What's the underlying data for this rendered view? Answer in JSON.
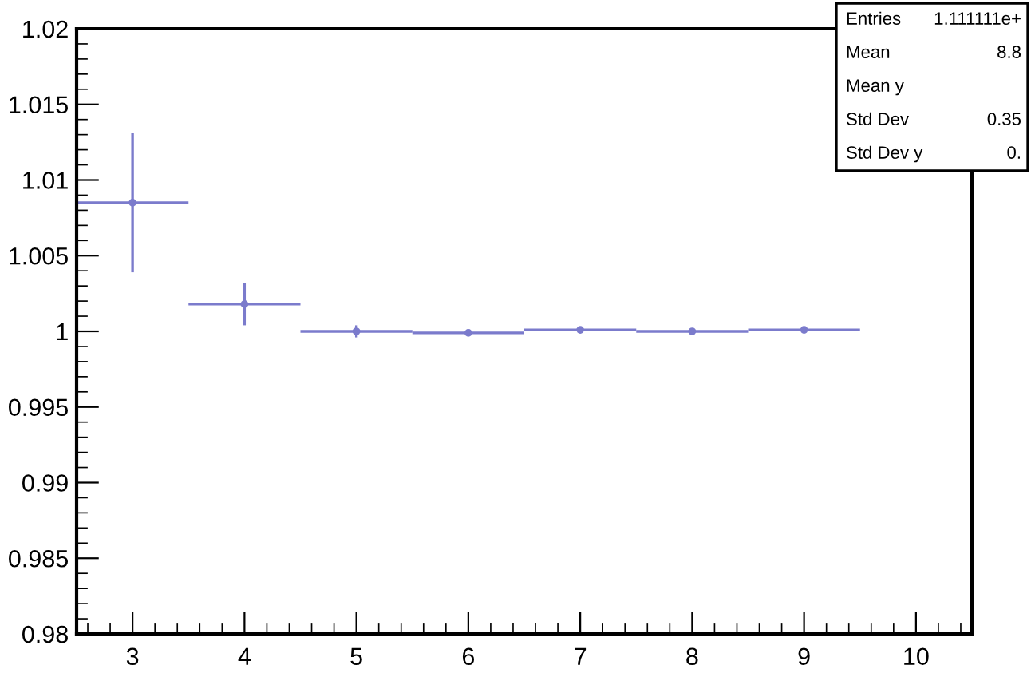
{
  "chart_data": {
    "type": "scatter",
    "x": [
      3,
      4,
      5,
      6,
      7,
      8,
      9
    ],
    "series": [
      {
        "color": "#7b7bcc",
        "values": [
          1.0085,
          1.0018,
          1.0,
          0.9999,
          1.0001,
          1.0,
          1.0001
        ],
        "errors": [
          0.0046,
          0.0014,
          0.0004,
          0.0001,
          0.0001,
          0.0001,
          0.0001
        ],
        "xerrors": [
          0.5,
          0.5,
          0.5,
          0.5,
          0.5,
          0.5,
          0.5
        ]
      }
    ],
    "xlim": [
      2.5,
      10.5
    ],
    "xticks": [
      3,
      4,
      5,
      6,
      7,
      8,
      9,
      10
    ],
    "ylim": [
      0.98,
      1.02
    ],
    "yticks": [
      {
        "value": 0.98,
        "label": "0.98"
      },
      {
        "value": 0.985,
        "label": "0.985"
      },
      {
        "value": 0.99,
        "label": "0.99"
      },
      {
        "value": 0.995,
        "label": "0.995"
      },
      {
        "value": 1,
        "label": "1"
      },
      {
        "value": 1.005,
        "label": "1.005"
      },
      {
        "value": 1.01,
        "label": "1.01"
      },
      {
        "value": 1.015,
        "label": "1.015"
      },
      {
        "value": 1.02,
        "label": "1.02"
      }
    ],
    "grid": false,
    "legend": false,
    "marker": "circle",
    "annotations": [
      "Entries\t1.111111e+",
      "Mean\t8.8",
      "Mean y",
      "Std Dev\t0.35",
      "Std Dev y\t0."
    ]
  }
}
